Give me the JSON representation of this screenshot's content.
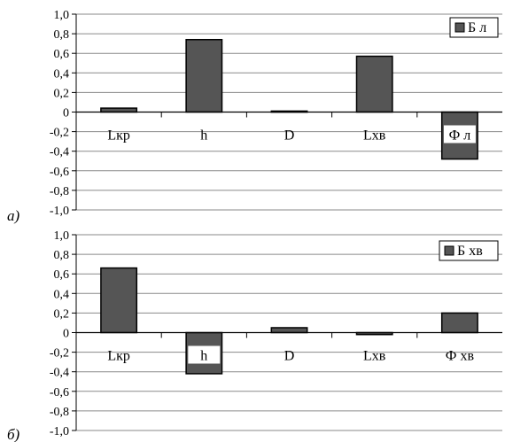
{
  "chart_data": [
    {
      "type": "bar",
      "panel_label": "а)",
      "categories": [
        "Lкр",
        "h",
        "D",
        "Lхв",
        "Ф л"
      ],
      "series": [
        {
          "name": "Б л",
          "values": [
            0.04,
            0.74,
            0.01,
            0.57,
            -0.48
          ]
        }
      ],
      "yticks": [
        "1,0",
        "0,8",
        "0,6",
        "0,4",
        "0,2",
        "0",
        "-0,2",
        "-0,4",
        "-0,6",
        "-0,8",
        "-1,0"
      ],
      "ylim": [
        -1.0,
        1.0
      ],
      "grid": true,
      "legend_position": "top-right"
    },
    {
      "type": "bar",
      "panel_label": "б)",
      "categories": [
        "Lкр",
        "h",
        "D",
        "Lхв",
        "Ф хв"
      ],
      "series": [
        {
          "name": "Б хв",
          "values": [
            0.66,
            -0.42,
            0.05,
            -0.02,
            0.2
          ]
        }
      ],
      "yticks": [
        "1,0",
        "0,8",
        "0,6",
        "0,4",
        "0,2",
        "0",
        "-0,2",
        "-0,4",
        "-0,6",
        "-0,8",
        "-1,0"
      ],
      "ylim": [
        -1.0,
        1.0
      ],
      "grid": true,
      "legend_position": "top-right"
    }
  ],
  "colors": {
    "bar_fill": "#555555",
    "bar_stroke": "#000000",
    "grid": "#8a8a8a",
    "background": "#ffffff"
  }
}
